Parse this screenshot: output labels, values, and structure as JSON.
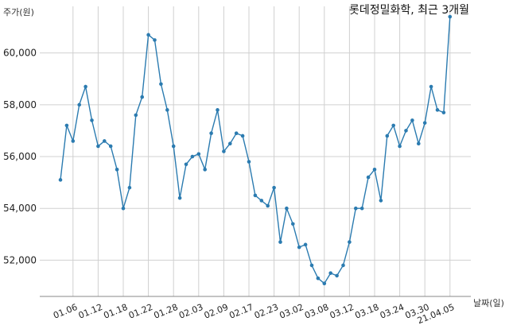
{
  "chart_data": {
    "type": "line",
    "title": "롯데정밀화학, 최근 3개월",
    "ylabel": "주가(원)",
    "xlabel": "날짜(일)",
    "ylim": [
      50600,
      61800
    ],
    "y_ticks": [
      52000,
      54000,
      56000,
      58000,
      60000
    ],
    "y_tick_labels": [
      "52,000",
      "54,000",
      "56,000",
      "58,000",
      "60,000"
    ],
    "x_tick_labels": [
      "01.06",
      "01.12",
      "01.18",
      "01.22",
      "01.28",
      "02.03",
      "02.09",
      "02.17",
      "02.23",
      "03.02",
      "03.08",
      "03.12",
      "03.18",
      "03.24",
      "03.30",
      "21.04.05"
    ],
    "x_tick_index": [
      2,
      6,
      10,
      14,
      18,
      22,
      26,
      30,
      34,
      38,
      42,
      46,
      50,
      54,
      58,
      62
    ],
    "grid": true,
    "color": "#2b7bb0",
    "values": [
      55100,
      57200,
      56600,
      58000,
      58700,
      57400,
      56400,
      56600,
      56400,
      55500,
      54000,
      54800,
      57600,
      58300,
      60700,
      60500,
      58800,
      57800,
      56400,
      54400,
      55700,
      56000,
      56100,
      55500,
      56900,
      57800,
      56200,
      56500,
      56900,
      56800,
      55800,
      54500,
      54300,
      54100,
      54800,
      52700,
      54000,
      53400,
      52500,
      52600,
      51800,
      51300,
      51100,
      51500,
      51400,
      51800,
      52700,
      54000,
      54000,
      55200,
      55500,
      54300,
      56800,
      57200,
      56400,
      57000,
      57400,
      56500,
      57300,
      58700,
      57800,
      57700,
      61400
    ]
  }
}
